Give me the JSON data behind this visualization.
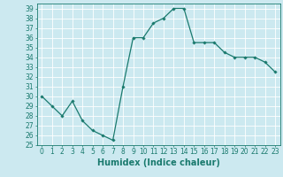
{
  "x": [
    0,
    1,
    2,
    3,
    4,
    5,
    6,
    7,
    8,
    9,
    10,
    11,
    12,
    13,
    14,
    15,
    16,
    17,
    18,
    19,
    20,
    21,
    22,
    23
  ],
  "y": [
    30,
    29,
    28,
    29.5,
    27.5,
    26.5,
    26,
    25.5,
    31,
    36,
    36,
    37.5,
    38,
    39,
    39,
    35.5,
    35.5,
    35.5,
    34.5,
    34,
    34,
    34,
    33.5,
    32.5
  ],
  "line_color": "#1a7a6e",
  "marker": "D",
  "marker_size": 1.8,
  "bg_color": "#cce9f0",
  "grid_color": "#ffffff",
  "xlabel": "Humidex (Indice chaleur)",
  "ylim": [
    25,
    39.5
  ],
  "xlim": [
    -0.5,
    23.5
  ],
  "yticks": [
    25,
    26,
    27,
    28,
    29,
    30,
    31,
    32,
    33,
    34,
    35,
    36,
    37,
    38,
    39
  ],
  "xticks": [
    0,
    1,
    2,
    3,
    4,
    5,
    6,
    7,
    8,
    9,
    10,
    11,
    12,
    13,
    14,
    15,
    16,
    17,
    18,
    19,
    20,
    21,
    22,
    23
  ],
  "axis_color": "#1a7a6e",
  "tick_label_fontsize": 5.5,
  "xlabel_fontsize": 7.0,
  "linewidth": 0.9
}
